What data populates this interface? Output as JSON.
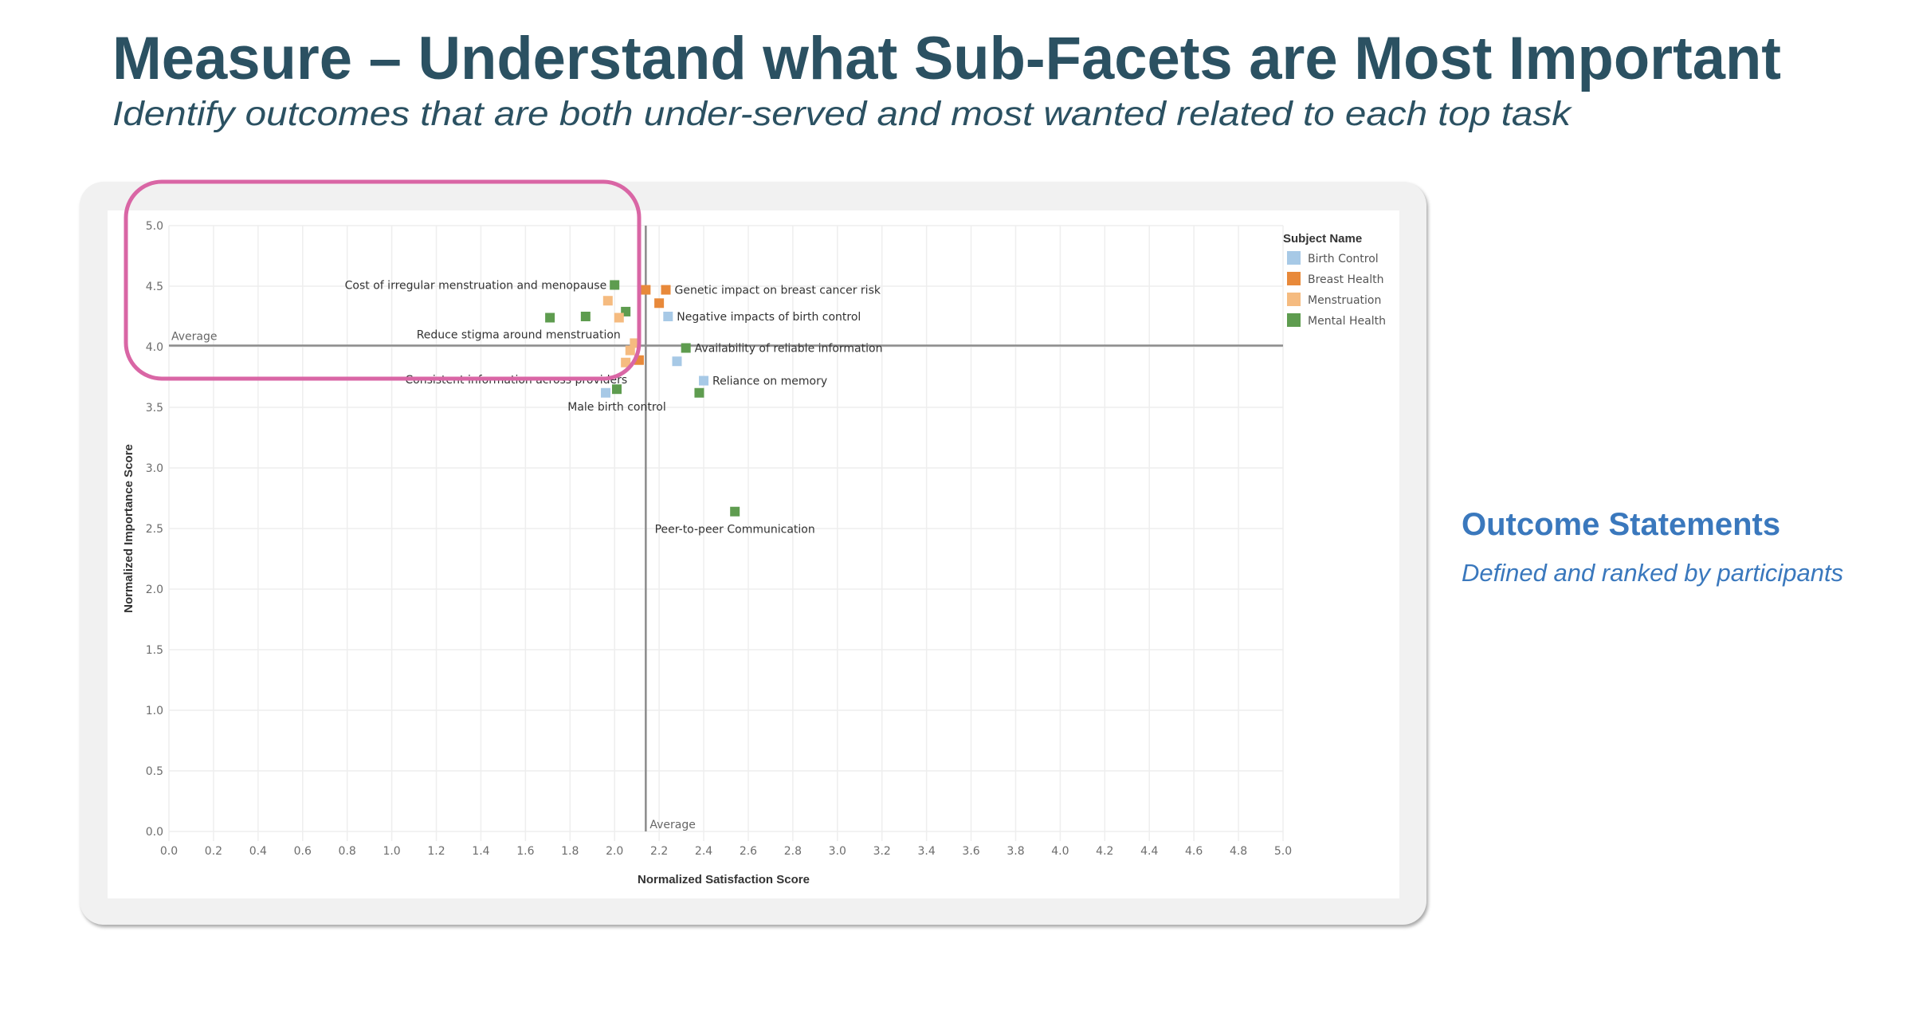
{
  "header": {
    "title": "Measure – Understand what Sub-Facets are Most Important",
    "subtitle": "Identify outcomes that are both under-served and most wanted related to each top task"
  },
  "side_panel": {
    "title": "Outcome Statements",
    "subtitle": "Defined and ranked by participants"
  },
  "colors": {
    "title": "#2b5162",
    "side_text": "#3a78bd",
    "highlight_box": "#d966a5",
    "Birth Control": "#a7c9e6",
    "Breast Health": "#e8893a",
    "Menstruation": "#f5bb80",
    "Mental Health": "#5e9c4f"
  },
  "chart_data": {
    "type": "scatter",
    "title": "",
    "xlabel": "Normalized Satisfaction Score",
    "ylabel": "Normalized Importance Score",
    "xlim": [
      0,
      5
    ],
    "ylim": [
      0,
      5
    ],
    "x_ticks": [
      "0.0",
      "0.2",
      "0.4",
      "0.6",
      "0.8",
      "1.0",
      "1.2",
      "1.4",
      "1.6",
      "1.8",
      "2.0",
      "2.2",
      "2.4",
      "2.6",
      "2.8",
      "3.0",
      "3.2",
      "3.4",
      "3.6",
      "3.8",
      "4.0",
      "4.2",
      "4.4",
      "4.6",
      "4.8",
      "5.0"
    ],
    "y_ticks": [
      "0.0",
      "0.5",
      "1.0",
      "1.5",
      "2.0",
      "2.5",
      "3.0",
      "3.5",
      "4.0",
      "4.5",
      "5.0"
    ],
    "grid": true,
    "reference_lines": {
      "x_average": 2.14,
      "y_average": 4.01,
      "x_average_label": "Average",
      "y_average_label": "Average"
    },
    "legend": {
      "title": "Subject Name",
      "position": "top-right",
      "entries": [
        "Birth Control",
        "Breast Health",
        "Menstruation",
        "Mental Health"
      ]
    },
    "points": [
      {
        "series": "Mental Health",
        "x": 2.0,
        "y": 4.51,
        "label": "Cost of irregular menstruation and menopause",
        "label_side": "left"
      },
      {
        "series": "Menstruation",
        "x": 1.97,
        "y": 4.38
      },
      {
        "series": "Mental Health",
        "x": 1.71,
        "y": 4.24
      },
      {
        "series": "Mental Health",
        "x": 1.87,
        "y": 4.25
      },
      {
        "series": "Mental Health",
        "x": 2.05,
        "y": 4.29
      },
      {
        "series": "Menstruation",
        "x": 2.02,
        "y": 4.24,
        "label": "Reduce stigma around menstruation",
        "label_side": "below-left"
      },
      {
        "series": "Menstruation",
        "x": 2.09,
        "y": 4.03
      },
      {
        "series": "Menstruation",
        "x": 2.07,
        "y": 3.97
      },
      {
        "series": "Breast Health",
        "x": 2.11,
        "y": 3.89
      },
      {
        "series": "Menstruation",
        "x": 2.05,
        "y": 3.87,
        "label": "Consistent information across providers",
        "label_side": "below-left"
      },
      {
        "series": "Birth Control",
        "x": 1.96,
        "y": 3.62
      },
      {
        "series": "Mental Health",
        "x": 2.01,
        "y": 3.65,
        "label": "Male birth control",
        "label_side": "below"
      },
      {
        "series": "Breast Health",
        "x": 2.14,
        "y": 4.47
      },
      {
        "series": "Breast Health",
        "x": 2.23,
        "y": 4.47,
        "label": "Genetic impact on breast cancer risk",
        "label_side": "right"
      },
      {
        "series": "Breast Health",
        "x": 2.2,
        "y": 4.36
      },
      {
        "series": "Birth Control",
        "x": 2.24,
        "y": 4.25,
        "label": "Negative impacts of birth control",
        "label_side": "right"
      },
      {
        "series": "Birth Control",
        "x": 2.28,
        "y": 3.88
      },
      {
        "series": "Mental Health",
        "x": 2.32,
        "y": 3.99,
        "label": "Availability of reliable information",
        "label_side": "right"
      },
      {
        "series": "Birth Control",
        "x": 2.4,
        "y": 3.72,
        "label": "Reliance on memory",
        "label_side": "right"
      },
      {
        "series": "Mental Health",
        "x": 2.38,
        "y": 3.62
      },
      {
        "series": "Mental Health",
        "x": 2.54,
        "y": 2.64,
        "label": "Peer-to-peer Communication",
        "label_side": "below"
      }
    ]
  }
}
